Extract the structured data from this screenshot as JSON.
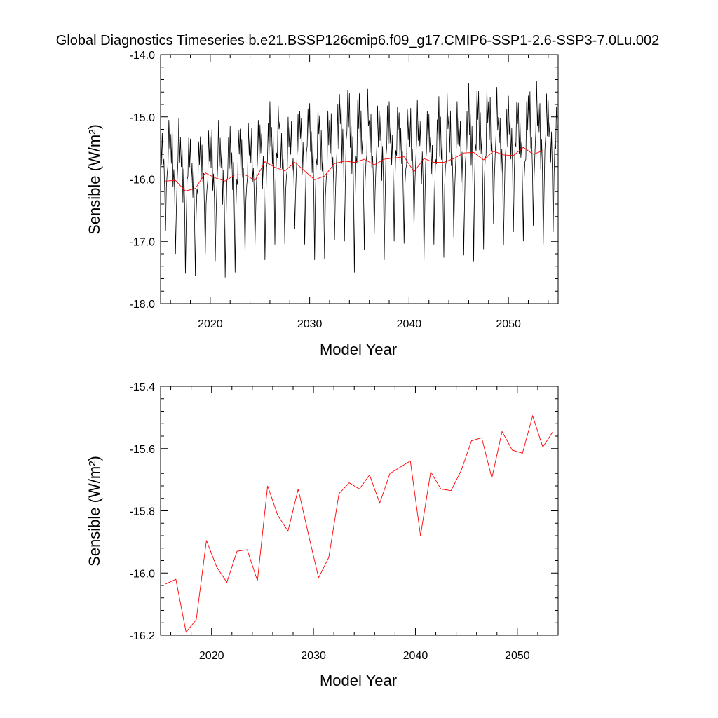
{
  "title": "Global Diagnostics Timeseries b.e21.BSSP126cmip6.f09_g17.CMIP6-SSP1-2.6-SSP3-7.0Lu.002",
  "colors": {
    "monthly": "#000000",
    "annual": "#ff0000"
  },
  "chart_data": [
    {
      "type": "line",
      "xlabel": "Model Year",
      "ylabel": "Sensible (W/m²)",
      "xlim": [
        2015,
        2055
      ],
      "ylim": [
        -18.0,
        -14.0
      ],
      "xticks": [
        "2020",
        "2030",
        "2040",
        "2050"
      ],
      "yticks": [
        "-14.0",
        "-15.0",
        "-16.0",
        "-17.0",
        "-18.0"
      ],
      "grid": false,
      "series": [
        {
          "role": "monthly",
          "monthly_pattern_start": "2015-01",
          "yearly_min": [
            -16.95,
            -17.35,
            -17.52,
            -17.55,
            -17.32,
            -17.48,
            -17.58,
            -17.5,
            -17.34,
            -17.2,
            -17.3,
            -17.05,
            -17.15,
            -16.95,
            -17.05,
            -17.3,
            -17.4,
            -17.15,
            -17.0,
            -17.5,
            -17.25,
            -17.05,
            -17.3,
            -17.0,
            -17.12,
            -16.95,
            -17.32,
            -17.05,
            -17.35,
            -17.12,
            -17.25,
            -17.32,
            -17.2,
            -16.92,
            -17.1,
            -16.85,
            -17.05,
            -16.95,
            -17.1,
            -16.85
          ],
          "yearly_max": [
            -15.05,
            -15.02,
            -15.2,
            -15.35,
            -15.22,
            -15.05,
            -15.2,
            -15.15,
            -15.1,
            -15.05,
            -14.98,
            -14.75,
            -15.0,
            -14.95,
            -14.75,
            -14.78,
            -14.9,
            -14.8,
            -14.45,
            -14.62,
            -14.55,
            -14.82,
            -14.7,
            -14.75,
            -14.88,
            -14.72,
            -14.8,
            -14.95,
            -14.62,
            -14.75,
            -14.82,
            -14.45,
            -14.55,
            -14.52,
            -14.8,
            -14.65,
            -14.75,
            -14.42,
            -14.55,
            -14.72
          ]
        },
        {
          "role": "annual",
          "x": [
            2015.5,
            2016.5,
            2017.5,
            2018.5,
            2019.5,
            2020.5,
            2021.5,
            2022.5,
            2023.5,
            2024.5,
            2025.5,
            2026.5,
            2027.5,
            2028.5,
            2029.5,
            2030.5,
            2031.5,
            2032.5,
            2033.5,
            2034.5,
            2035.5,
            2036.5,
            2037.5,
            2038.5,
            2039.5,
            2040.5,
            2041.5,
            2042.5,
            2043.5,
            2044.5,
            2045.5,
            2046.5,
            2047.5,
            2048.5,
            2049.5,
            2050.5,
            2051.5,
            2052.5,
            2053.5
          ],
          "y": [
            -16.03,
            -16.02,
            -16.19,
            -16.15,
            -15.9,
            -15.98,
            -16.03,
            -15.93,
            -15.93,
            -16.02,
            -15.72,
            -15.81,
            -15.87,
            -15.73,
            -15.87,
            -16.01,
            -15.95,
            -15.75,
            -15.71,
            -15.73,
            -15.68,
            -15.77,
            -15.68,
            -15.66,
            -15.64,
            -15.88,
            -15.67,
            -15.73,
            -15.73,
            -15.67,
            -15.58,
            -15.57,
            -15.69,
            -15.55,
            -15.61,
            -15.62,
            -15.49,
            -15.6,
            -15.54
          ]
        }
      ]
    },
    {
      "type": "line",
      "xlabel": "Model Year",
      "ylabel": "Sensible (W/m²)",
      "xlim": [
        2015,
        2054
      ],
      "ylim": [
        -16.2,
        -15.4
      ],
      "xticks": [
        "2020",
        "2030",
        "2040",
        "2050"
      ],
      "yticks": [
        "-15.4",
        "-15.6",
        "-15.8",
        "-16.0",
        "-16.2"
      ],
      "grid": false,
      "series": [
        {
          "role": "annual",
          "x": [
            2015.5,
            2016.5,
            2017.5,
            2018.5,
            2019.5,
            2020.5,
            2021.5,
            2022.5,
            2023.5,
            2024.5,
            2025.5,
            2026.5,
            2027.5,
            2028.5,
            2029.5,
            2030.5,
            2031.5,
            2032.5,
            2033.5,
            2034.5,
            2035.5,
            2036.5,
            2037.5,
            2038.5,
            2039.5,
            2040.5,
            2041.5,
            2042.5,
            2043.5,
            2044.5,
            2045.5,
            2046.5,
            2047.5,
            2048.5,
            2049.5,
            2050.5,
            2051.5,
            2052.5,
            2053.5
          ],
          "y": [
            -16.035,
            -16.02,
            -16.19,
            -16.15,
            -15.895,
            -15.98,
            -16.03,
            -15.93,
            -15.925,
            -16.025,
            -15.72,
            -15.815,
            -15.865,
            -15.73,
            -15.875,
            -16.015,
            -15.95,
            -15.745,
            -15.71,
            -15.73,
            -15.685,
            -15.775,
            -15.68,
            -15.66,
            -15.64,
            -15.88,
            -15.675,
            -15.73,
            -15.735,
            -15.67,
            -15.575,
            -15.565,
            -15.695,
            -15.545,
            -15.605,
            -15.615,
            -15.495,
            -15.595,
            -15.545
          ]
        }
      ]
    }
  ]
}
